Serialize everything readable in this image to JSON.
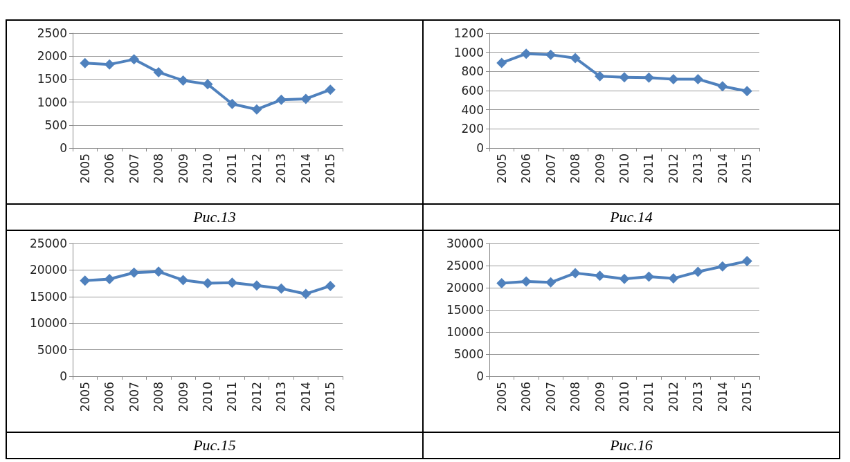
{
  "chart_data": [
    {
      "type": "line",
      "annotations": [
        "Рис.13"
      ],
      "categories": [
        "2005",
        "2006",
        "2007",
        "2008",
        "2009",
        "2010",
        "2011",
        "2012",
        "2013",
        "2014",
        "2015"
      ],
      "series": [
        {
          "color": "#4f81bd",
          "values": [
            1850,
            1820,
            1930,
            1650,
            1470,
            1390,
            960,
            840,
            1050,
            1070,
            1270
          ]
        }
      ],
      "ylim": [
        0,
        2500
      ],
      "yticks": [
        0,
        500,
        1000,
        1500,
        2000,
        2500
      ],
      "grid": "y",
      "legend": false,
      "marker": "diamond",
      "line_style": "solid"
    },
    {
      "type": "line",
      "annotations": [
        "Рис.14"
      ],
      "categories": [
        "2005",
        "2006",
        "2007",
        "2008",
        "2009",
        "2010",
        "2011",
        "2012",
        "2013",
        "2014",
        "2015"
      ],
      "series": [
        {
          "color": "#4f81bd",
          "values": [
            890,
            985,
            975,
            940,
            750,
            740,
            735,
            720,
            720,
            645,
            595
          ]
        }
      ],
      "ylim": [
        0,
        1200
      ],
      "yticks": [
        0,
        200,
        400,
        600,
        800,
        1000,
        1200
      ],
      "grid": "y",
      "legend": false,
      "marker": "diamond",
      "line_style": "solid"
    },
    {
      "type": "line",
      "annotations": [
        "Рис.15"
      ],
      "categories": [
        "2005",
        "2006",
        "2007",
        "2008",
        "2009",
        "2010",
        "2011",
        "2012",
        "2013",
        "2014",
        "2015"
      ],
      "series": [
        {
          "color": "#4f81bd",
          "values": [
            18000,
            18300,
            19500,
            19700,
            18100,
            17500,
            17600,
            17100,
            16500,
            15500,
            17000
          ]
        }
      ],
      "ylim": [
        0,
        25000
      ],
      "yticks": [
        0,
        5000,
        10000,
        15000,
        20000,
        25000
      ],
      "grid": "y",
      "legend": false,
      "marker": "diamond",
      "line_style": "solid"
    },
    {
      "type": "line",
      "annotations": [
        "Рис.16"
      ],
      "categories": [
        "2005",
        "2006",
        "2007",
        "2008",
        "2009",
        "2010",
        "2011",
        "2012",
        "2013",
        "2014",
        "2015"
      ],
      "series": [
        {
          "color": "#4f81bd",
          "values": [
            21000,
            21400,
            21200,
            23300,
            22700,
            22000,
            22500,
            22100,
            23600,
            24800,
            26000
          ]
        }
      ],
      "ylim": [
        0,
        30000
      ],
      "yticks": [
        0,
        5000,
        10000,
        15000,
        20000,
        25000,
        30000
      ],
      "grid": "y",
      "legend": false,
      "marker": "diamond",
      "line_style": "solid"
    }
  ]
}
